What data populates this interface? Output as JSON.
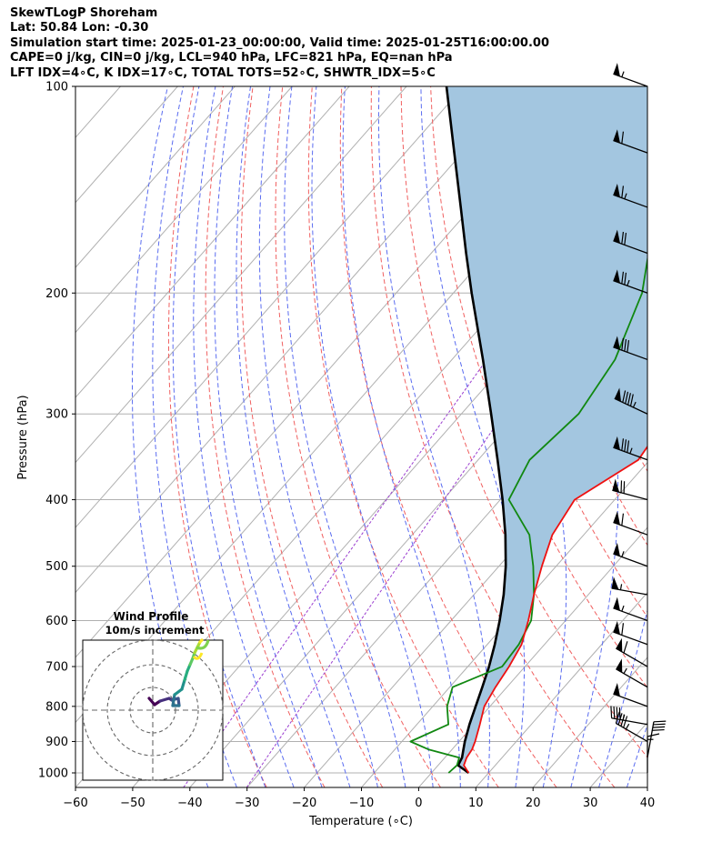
{
  "header": {
    "line1": "SkewTLogP Shoreham",
    "line2": "Lat: 50.84   Lon: -0.30",
    "line3": "Simulation start time: 2025-01-23_00:00:00, Valid time: 2025-01-25T16:00:00.00",
    "line4": "CAPE=0 j/kg, CIN=0 j/kg, LCL=940 hPa, LFC=821 hPa, EQ=nan hPa",
    "line5": "LFT IDX=4∘C, K IDX=17∘C, TOTAL TOTS=52∘C, SHWTR_IDX=5∘C"
  },
  "chart_data": {
    "type": "line",
    "xlabel": "Temperature (∘C)",
    "ylabel": "Pressure (hPa)",
    "x_ticks": [
      "−60",
      "−50",
      "−40",
      "−30",
      "−20",
      "−10",
      "0",
      "10",
      "20",
      "30",
      "40"
    ],
    "y_ticks": [
      "100",
      "200",
      "300",
      "400",
      "500",
      "600",
      "700",
      "800",
      "900",
      "1000"
    ],
    "xlim": [
      -60,
      40
    ],
    "ylim": [
      1050,
      100
    ],
    "y_scale": "log",
    "grid": true,
    "series": [
      {
        "color": "#ee1111",
        "pressure": [
          1000,
          975,
          950,
          925,
          900,
          850,
          800,
          750,
          700,
          650,
          600,
          550,
          500,
          450,
          400,
          350,
          300,
          250,
          230,
          200,
          175,
          150,
          125,
          100
        ],
        "temperature": [
          6.5,
          4.5,
          3.8,
          3.5,
          2.8,
          1.0,
          -1.0,
          -2.0,
          -2.8,
          -4.0,
          -6.5,
          -9.5,
          -12.5,
          -15.5,
          -17.0,
          -12.0,
          -13.5,
          -14.5,
          -14.0,
          -12.5,
          -12.0,
          -12.5,
          -13.0,
          -14.0
        ]
      },
      {
        "color": "#118811",
        "pressure": [
          1000,
          975,
          950,
          925,
          900,
          850,
          800,
          750,
          700,
          650,
          600,
          550,
          500,
          450,
          400,
          350,
          300,
          250,
          200,
          175,
          150,
          125,
          100
        ],
        "temperature": [
          3.0,
          3.3,
          2.5,
          -4.0,
          -8.5,
          -4.5,
          -7.5,
          -9.5,
          -4.0,
          -4.5,
          -6.0,
          -9.5,
          -14.0,
          -19.5,
          -28.5,
          -31.0,
          -29.5,
          -31.5,
          -37.0,
          -42.0,
          -40.0,
          -38.0,
          -37.0
        ]
      },
      {
        "color": "#000000",
        "name_label": "",
        "pressure": [
          1000,
          975,
          950,
          925,
          900,
          850,
          800,
          750,
          700,
          650,
          600,
          550,
          500,
          450,
          400,
          350,
          300,
          250,
          200,
          175,
          150,
          125,
          100
        ],
        "temperature": [
          6.5,
          3.5,
          3.0,
          2.0,
          1.0,
          -0.8,
          -2.5,
          -4.3,
          -6.3,
          -8.7,
          -11.5,
          -14.8,
          -18.8,
          -23.7,
          -29.6,
          -36.6,
          -44.8,
          -54.6,
          -66.8,
          -73.9,
          -81.9,
          -91.4,
          -103.0
        ]
      }
    ],
    "wind_barbs": {
      "pressure": [
        1000,
        950,
        900,
        850,
        800,
        750,
        700,
        650,
        600,
        550,
        500,
        450,
        400,
        350,
        300,
        250,
        200,
        175,
        150,
        125,
        100
      ],
      "direction_deg": [
        0,
        10,
        300,
        280,
        290,
        300,
        300,
        290,
        290,
        280,
        290,
        290,
        285,
        290,
        295,
        290,
        290,
        290,
        290,
        290,
        290
      ],
      "speed_kt": [
        15,
        40,
        45,
        45,
        50,
        55,
        60,
        60,
        55,
        55,
        55,
        60,
        70,
        85,
        95,
        80,
        75,
        70,
        65,
        60,
        55
      ]
    },
    "inset": {
      "title": "Wind Profile",
      "subtitle": "10m/s increment",
      "rings": 3
    }
  }
}
